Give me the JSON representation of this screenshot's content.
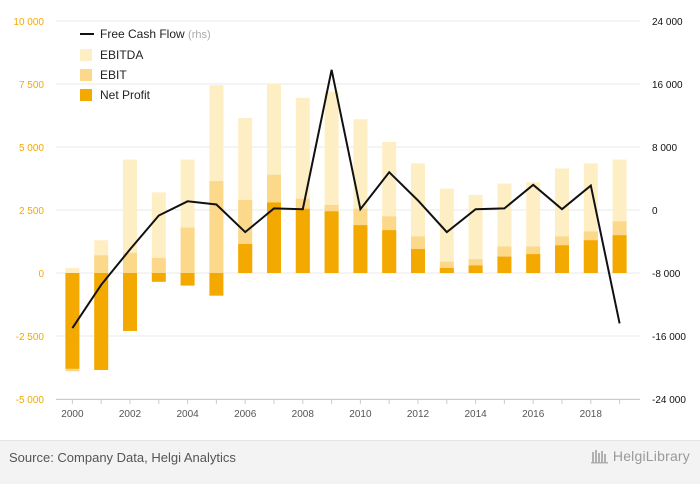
{
  "chart_data": {
    "type": "bar",
    "categories": [
      "2000",
      "2001",
      "2002",
      "2003",
      "2004",
      "2005",
      "2006",
      "2007",
      "2008",
      "2009",
      "2010",
      "2011",
      "2012",
      "2013",
      "2014",
      "2015",
      "2016",
      "2017",
      "2018",
      "2019"
    ],
    "x_tick_labels": [
      "2000",
      "2002",
      "2004",
      "2006",
      "2008",
      "2010",
      "2012",
      "2014",
      "2016",
      "2018"
    ],
    "series": [
      {
        "name": "EBITDA",
        "color": "#fdeec4",
        "values": [
          200,
          1300,
          4500,
          3200,
          4500,
          7450,
          6150,
          7500,
          6950,
          7200,
          6100,
          5200,
          4350,
          3350,
          3100,
          3550,
          3600,
          4150,
          4350,
          4500
        ]
      },
      {
        "name": "EBIT",
        "color": "#fcd98a",
        "values": [
          -3900,
          700,
          800,
          600,
          1800,
          3650,
          2900,
          3900,
          2950,
          2700,
          2550,
          2250,
          1450,
          450,
          550,
          1050,
          1050,
          1450,
          1650,
          2050
        ]
      },
      {
        "name": "Net Profit",
        "color": "#f3a900",
        "values": [
          -3800,
          -3850,
          -2300,
          -350,
          -500,
          -900,
          1150,
          2800,
          2550,
          2450,
          1900,
          1700,
          950,
          200,
          300,
          650,
          750,
          1100,
          1300,
          1500
        ]
      }
    ],
    "line_series": {
      "name": "Free Cash Flow",
      "axis_note": "(rhs)",
      "color": "#111111",
      "values": [
        -15000,
        -9500,
        -5000,
        -700,
        1100,
        700,
        -2800,
        200,
        100,
        17800,
        100,
        4800,
        1200,
        -2800,
        100,
        200,
        3200,
        100,
        3100,
        -14400
      ]
    },
    "y_left": {
      "min": -5000,
      "max": 10000,
      "ticks": [
        10000,
        7500,
        5000,
        2500,
        0,
        -2500,
        -5000
      ],
      "tick_labels": [
        "10 000",
        "7 500",
        "5 000",
        "2 500",
        "0",
        "-2 500",
        "-5 000"
      ]
    },
    "y_right": {
      "min": -24000,
      "max": 24000,
      "ticks": [
        24000,
        16000,
        8000,
        0,
        -8000,
        -16000,
        -24000
      ],
      "tick_labels": [
        "24 000",
        "16 000",
        "8 000",
        "0",
        "-8 000",
        "-16 000",
        "-24 000"
      ]
    },
    "grid": true,
    "legend_position": "top-left"
  },
  "colors": {
    "axis_left": "#f3a900",
    "axis_right": "#111111",
    "grid": "#e8e8e8",
    "rhs_note": "#aaaaaa"
  },
  "footer": {
    "source": "Source: Company Data, Helgi Analytics",
    "brand": "HelgiLibrary"
  }
}
